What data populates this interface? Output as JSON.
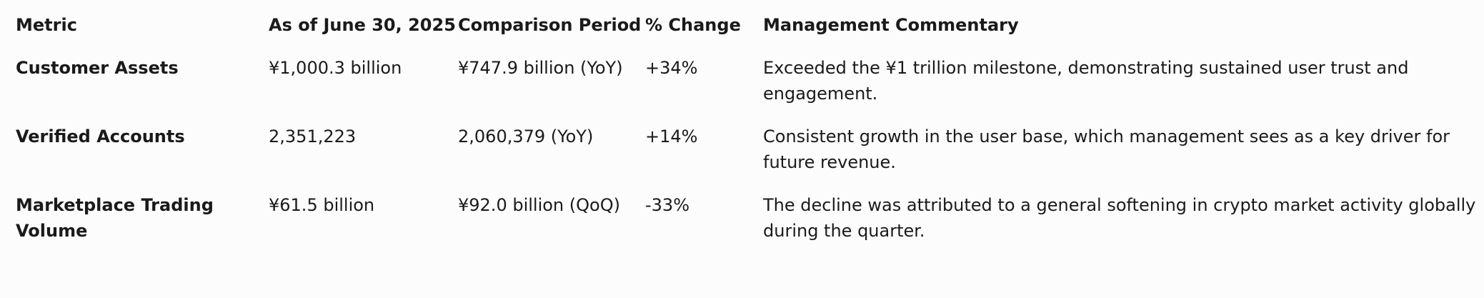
{
  "table": {
    "headers": [
      "Metric",
      "As of June 30, 2025",
      "Comparison Period",
      "% Change",
      "Management Commentary"
    ],
    "rows": [
      {
        "metric": "Customer Assets",
        "current": "¥1,000.3 billion",
        "comparison": "¥747.9 billion (YoY)",
        "change": "+34%",
        "commentary": "Exceeded the ¥1 trillion milestone, demonstrating sustained user trust and engagement."
      },
      {
        "metric": "Verified Accounts",
        "current": "2,351,223",
        "comparison": "2,060,379 (YoY)",
        "change": "+14%",
        "commentary": "Consistent growth in the user base, which management sees as a key driver for future revenue."
      },
      {
        "metric": "Marketplace Trading Volume",
        "current": "¥61.5 billion",
        "comparison": "¥92.0 billion (QoQ)",
        "change": "-33%",
        "commentary": "The decline was attributed to a general softening in crypto market activity globally during the quarter."
      }
    ]
  }
}
